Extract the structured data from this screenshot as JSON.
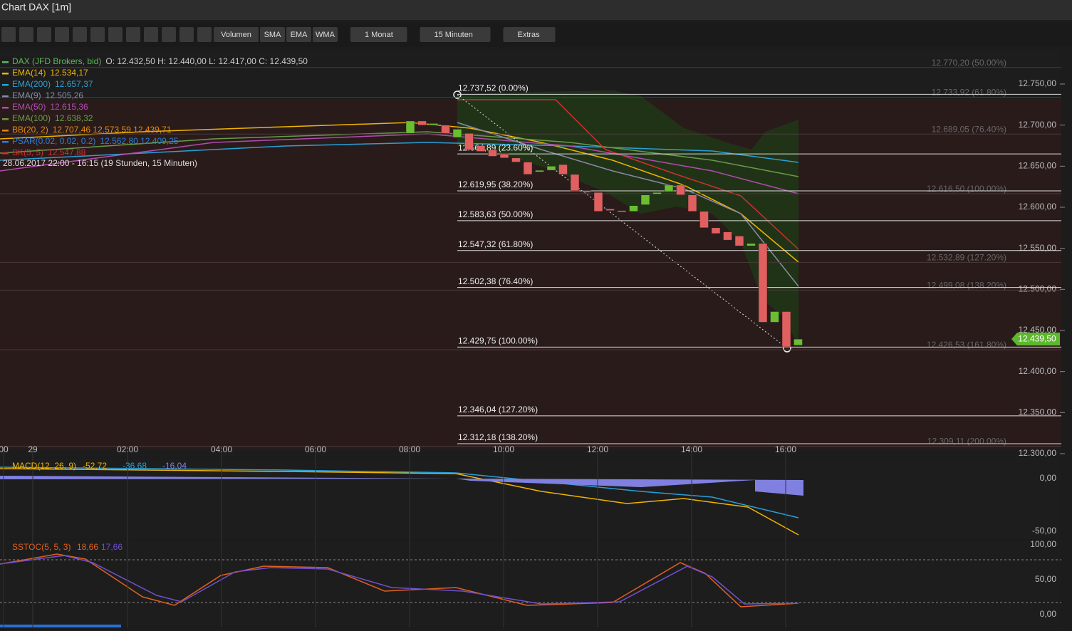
{
  "window_title": "Chart DAX [1m]",
  "toolbar": {
    "buttons": [
      "Volumen",
      "SMA",
      "EMA",
      "WMA"
    ],
    "menus": [
      "1 Monat",
      "15 Minuten",
      "Extras"
    ]
  },
  "legend": [
    {
      "name": "DAX (JFD Brokers, bid)",
      "value": "O: 12.432,50  H: 12.440,00  L: 12.417,00  C: 12.439,50",
      "color": "#5cb85c"
    },
    {
      "name": "EMA(14)",
      "value": "12.534,17",
      "color": "#f0b400"
    },
    {
      "name": "EMA(200)",
      "value": "12.657,37",
      "color": "#2a9fd6"
    },
    {
      "name": "EMA(9)",
      "value": "12.505,26",
      "color": "#8a8aa8"
    },
    {
      "name": "EMA(50)",
      "value": "12.615,36",
      "color": "#b04cb0"
    },
    {
      "name": "EMA(100)",
      "value": "12.638,32",
      "color": "#6a9a4a"
    },
    {
      "name": "BB(20, 2)",
      "value": "12.707,46  12.573,59  12.439,71",
      "color": "#e08a10"
    },
    {
      "name": "PSAR(0.02, 0.02, 0.2)",
      "value": "12.562,80  12.409,25",
      "color": "#2a7fd6"
    },
    {
      "name": "SK(5, 5)",
      "value": "12.547,88",
      "color": "#d03030"
    }
  ],
  "period": "28.06.2017 22:00 - 16:15  (19 Stunden, 15 Minuten)",
  "price_ticks": [
    {
      "value": 12750,
      "label": "12.750,00"
    },
    {
      "value": 12700,
      "label": "12.700,00"
    },
    {
      "value": 12650,
      "label": "12.650,00"
    },
    {
      "value": 12600,
      "label": "12.600,00"
    },
    {
      "value": 12550,
      "label": "12.550,00"
    },
    {
      "value": 12500,
      "label": "12.500,00"
    },
    {
      "value": 12450,
      "label": "12.450,00"
    },
    {
      "value": 12400,
      "label": "12.400,00"
    },
    {
      "value": 12350,
      "label": "12.350,00"
    },
    {
      "value": 12300,
      "label": "12.300,00"
    }
  ],
  "last_price": {
    "value": 12439.5,
    "label": "12.439,50"
  },
  "fib_levels": [
    {
      "value": 12737.52,
      "label": "12.737,52 (0.00%)"
    },
    {
      "value": 12664.89,
      "label": "12.664,89 (23.60%)"
    },
    {
      "value": 12619.95,
      "label": "12.619,95 (38.20%)"
    },
    {
      "value": 12583.63,
      "label": "12.583,63 (50.00%)"
    },
    {
      "value": 12547.32,
      "label": "12.547,32 (61.80%)"
    },
    {
      "value": 12502.38,
      "label": "12.502,38 (76.40%)"
    },
    {
      "value": 12429.75,
      "label": "12.429,75 (100.00%)"
    },
    {
      "value": 12346.04,
      "label": "12.346,04 (127.20%)"
    },
    {
      "value": 12312.18,
      "label": "12.312,18 (138.20%)"
    }
  ],
  "fib_levels_faint": [
    {
      "value": 12770.2,
      "label": "12.770,20 (50.00%)"
    },
    {
      "value": 12733.92,
      "label": "12.733,92 (61.80%)"
    },
    {
      "value": 12689.05,
      "label": "12.689,05 (76.40%)"
    },
    {
      "value": 12616.5,
      "label": "12.616,50 (100.00%)"
    },
    {
      "value": 12532.89,
      "label": "12.532,89 (127.20%)"
    },
    {
      "value": 12499.08,
      "label": "12.499,08 (138.20%)"
    },
    {
      "value": 12426.53,
      "label": "12.426,53 (161.80%)"
    },
    {
      "value": 12309.11,
      "label": "12.309,11 (200.00%)"
    }
  ],
  "time_labels": [
    "00",
    "29",
    "02:00",
    "04:00",
    "06:00",
    "08:00",
    "10:00",
    "12:00",
    "14:00",
    "16:00"
  ],
  "candles": [
    [
      12690,
      12705
    ],
    [
      12705,
      12700
    ],
    [
      12700,
      12702
    ],
    [
      12700,
      12690
    ],
    [
      12685,
      12695
    ],
    [
      12690,
      12670
    ],
    [
      12675,
      12668
    ],
    [
      12670,
      12662
    ],
    [
      12665,
      12660
    ],
    [
      12660,
      12655
    ],
    [
      12655,
      12640
    ],
    [
      12643,
      12645
    ],
    [
      12645,
      12650
    ],
    [
      12652,
      12640
    ],
    [
      12640,
      12620
    ],
    [
      12620,
      12618
    ],
    [
      12618,
      12595
    ],
    [
      12598,
      12596
    ],
    [
      12596,
      12595
    ],
    [
      12595,
      12602
    ],
    [
      12603,
      12615
    ],
    [
      12616,
      12618
    ],
    [
      12619,
      12627
    ],
    [
      12627,
      12615
    ],
    [
      12615,
      12595
    ],
    [
      12595,
      12575
    ],
    [
      12575,
      12568
    ],
    [
      12570,
      12560
    ],
    [
      12565,
      12553
    ],
    [
      12553,
      12556
    ],
    [
      12556,
      12460
    ],
    [
      12460,
      12473
    ],
    [
      12473,
      12430
    ],
    [
      12432,
      12439.5
    ]
  ],
  "macd": {
    "name": "MACD(12, 26, 9)",
    "values": [
      "-52,72",
      "-36,68",
      "-16,04"
    ],
    "ticks": [
      "0,00",
      "-50,00"
    ]
  },
  "sstoc": {
    "name": "SSTOC(5, 5, 3)",
    "values": [
      "18,66",
      "17,66"
    ],
    "ticks": [
      "100,00",
      "50,00",
      "0,00"
    ]
  }
}
